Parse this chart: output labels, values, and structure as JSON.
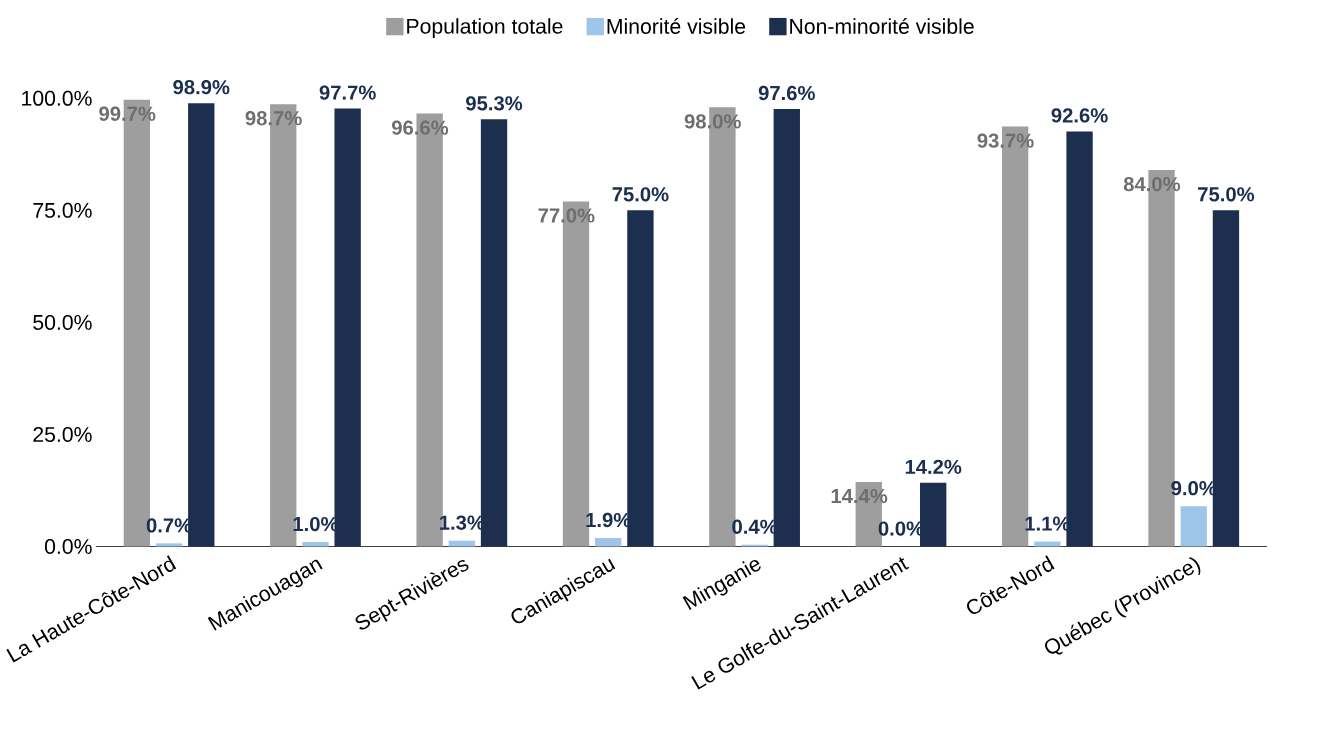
{
  "chart_data": {
    "type": "bar",
    "categories": [
      "La Haute-Côte-Nord",
      "Manicouagan",
      "Sept-Rivières",
      "Caniapiscau",
      "Minganie",
      "Le Golfe-du-Saint-Laurent",
      "Côte-Nord",
      "Québec (Province)"
    ],
    "series": [
      {
        "name": "Population totale",
        "color": "#9e9e9e",
        "values": [
          99.7,
          98.7,
          96.6,
          77.0,
          98.0,
          14.4,
          93.7,
          84.0
        ],
        "value_labels": [
          "99.7%",
          "98.7%",
          "96.6%",
          "77.0%",
          "98.0%",
          "14.4%",
          "93.7%",
          "84.0%"
        ]
      },
      {
        "name": "Minorité visible",
        "color": "#9fc5e8",
        "values": [
          0.7,
          1.0,
          1.3,
          1.9,
          0.4,
          0.0,
          1.1,
          9.0
        ],
        "value_labels": [
          "0.7%",
          "1.0%",
          "1.3%",
          "1.9%",
          "0.4%",
          "0.0%",
          "1.1%",
          "9.0%"
        ]
      },
      {
        "name": "Non-minorité visible",
        "color": "#1c2f4f",
        "values": [
          98.9,
          97.7,
          95.3,
          75.0,
          97.6,
          14.2,
          92.6,
          75.0
        ],
        "value_labels": [
          "98.9%",
          "97.7%",
          "95.3%",
          "75.0%",
          "97.6%",
          "14.2%",
          "92.6%",
          "75.0%"
        ]
      }
    ],
    "ylim": [
      0,
      100
    ],
    "yticks": [
      {
        "value": 0,
        "label": "0.0%"
      },
      {
        "value": 25,
        "label": "25.0%"
      },
      {
        "value": 50,
        "label": "50.0%"
      },
      {
        "value": 75,
        "label": "75.0%"
      },
      {
        "value": 100,
        "label": "100.0%"
      }
    ],
    "legend": "top"
  }
}
